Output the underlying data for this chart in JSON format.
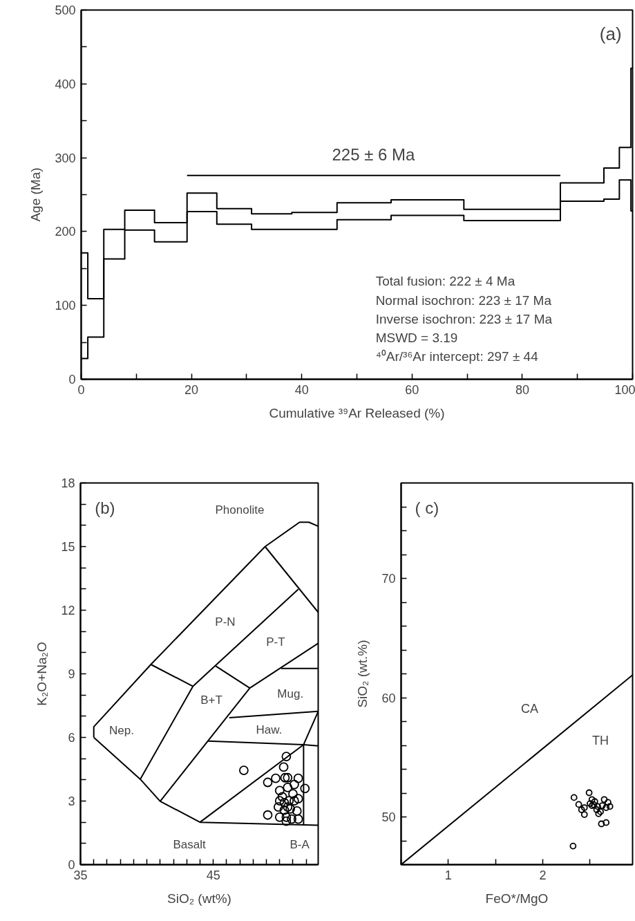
{
  "chart_data": [
    {
      "type": "step",
      "title": "(a)",
      "xlabel": "Cumulative ³⁹Ar Released (%)",
      "ylabel": "Age (Ma)",
      "xlim": [
        0,
        100
      ],
      "ylim": [
        0,
        500
      ],
      "xticks": [
        0,
        {
          "value": 10,
          "label": null
        },
        20,
        {
          "value": 30,
          "label": null
        },
        40,
        {
          "value": 50,
          "label": null
        },
        60,
        {
          "value": 70,
          "label": null
        },
        80,
        {
          "value": 90,
          "label": null
        },
        100
      ],
      "yticks": [
        0,
        {
          "value": 50,
          "label": null
        },
        100,
        {
          "value": 150,
          "label": null
        },
        200,
        {
          "value": 250,
          "label": null
        },
        300,
        {
          "value": 350,
          "label": null
        },
        400,
        {
          "value": 450,
          "label": null
        },
        500
      ],
      "x": [
        0,
        1.2,
        4.1,
        7.9,
        13.3,
        19.2,
        24.6,
        30.9,
        38.2,
        46.4,
        56.2,
        69.4,
        86.9,
        94.8,
        97.6,
        99.7
      ],
      "series": [
        {
          "color": "#000000",
          "values": [
            171,
            109,
            203,
            229,
            212,
            252,
            231,
            224,
            226,
            239,
            243,
            230,
            266,
            286,
            314,
            421
          ]
        },
        {
          "color": "#000000",
          "values": [
            28,
            57,
            163,
            202,
            186,
            227,
            210,
            203,
            203,
            216,
            222,
            215,
            241,
            244,
            270,
            228
          ]
        },
        {
          "type": "line",
          "color": "#000000",
          "x": [
            19.2,
            86.9
          ],
          "values": [
            276,
            276
          ]
        }
      ],
      "annotations": [
        "225 ± 6 Ma",
        "Total fusion: 222 ± 4  Ma",
        "Normal isochron: 223 ± 17 Ma",
        "Inverse isochron: 223 ± 17 Ma",
        "MSWD = 3.19",
        "⁴⁰Ar/³⁶Ar intercept: 297 ± 44"
      ]
    },
    {
      "type": "scatter",
      "title": "(b)",
      "xlabel": "SiO₂ (wt%)",
      "ylabel": "K₂O+Na₂O",
      "xlim": [
        35,
        52.9
      ],
      "ylim": [
        0,
        18
      ],
      "xticks": [
        35,
        {
          "value": 36,
          "label": null
        },
        {
          "value": 37,
          "label": null
        },
        {
          "value": 38,
          "label": null
        },
        {
          "value": 39,
          "label": null
        },
        {
          "value": 40,
          "label": null
        },
        {
          "value": 41,
          "label": null
        },
        {
          "value": 42,
          "label": null
        },
        {
          "value": 43,
          "label": null
        },
        {
          "value": 44,
          "label": null
        },
        45,
        {
          "value": 46,
          "label": null
        },
        {
          "value": 47,
          "label": null
        },
        {
          "value": 48,
          "label": null
        },
        {
          "value": 49,
          "label": null
        },
        {
          "value": 50,
          "label": null
        },
        {
          "value": 51,
          "label": null
        },
        {
          "value": 52,
          "label": null
        }
      ],
      "yticks": [
        0,
        {
          "value": 1,
          "label": null
        },
        {
          "value": 2,
          "label": null
        },
        3,
        {
          "value": 4,
          "label": null
        },
        {
          "value": 5,
          "label": null
        },
        6,
        {
          "value": 7,
          "label": null
        },
        {
          "value": 8,
          "label": null
        },
        9,
        {
          "value": 10,
          "label": null
        },
        {
          "value": 11,
          "label": null
        },
        12,
        {
          "value": 13,
          "label": null
        },
        {
          "value": 14,
          "label": null
        },
        15,
        {
          "value": 16,
          "label": null
        },
        {
          "value": 17,
          "label": null
        },
        18
      ],
      "series": [
        {
          "type": "line",
          "color": "#000000",
          "x": [
            36.0,
            36.0,
            40.3,
            48.9,
            51.5,
            52.2,
            52.9
          ],
          "values": [
            6.0,
            6.5,
            9.44,
            15.0,
            16.15,
            16.15,
            15.96
          ]
        },
        {
          "type": "line",
          "color": "#000000",
          "x": [
            36.0,
            39.5,
            41.0,
            44.0,
            52.9
          ],
          "values": [
            6.0,
            4.03,
            2.99,
            2.0,
            1.86
          ]
        },
        {
          "type": "line",
          "color": "#000000",
          "x": [
            40.3,
            43.47
          ],
          "values": [
            9.44,
            8.41
          ]
        },
        {
          "type": "line",
          "color": "#000000",
          "x": [
            39.5,
            43.47,
            45.15,
            51.4
          ],
          "values": [
            4.03,
            8.41,
            9.38,
            12.99
          ]
        },
        {
          "type": "line",
          "color": "#000000",
          "x": [
            48.9,
            52.9
          ],
          "values": [
            15.0,
            11.9
          ]
        },
        {
          "type": "line",
          "color": "#000000",
          "x": [
            45.15,
            47.75
          ],
          "values": [
            9.38,
            8.33
          ]
        },
        {
          "type": "line",
          "color": "#000000",
          "x": [
            41.0,
            47.75,
            52.9
          ],
          "values": [
            2.99,
            8.33,
            10.44
          ]
        },
        {
          "type": "line",
          "color": "#000000",
          "x": [
            50.1,
            52.9
          ],
          "values": [
            9.25,
            9.25
          ]
        },
        {
          "type": "line",
          "color": "#000000",
          "x": [
            46.2,
            52.9
          ],
          "values": [
            6.93,
            7.23
          ]
        },
        {
          "type": "line",
          "color": "#000000",
          "x": [
            44.6,
            51.8,
            52.9
          ],
          "values": [
            5.83,
            5.66,
            5.6
          ]
        },
        {
          "type": "line",
          "color": "#000000",
          "x": [
            52.9,
            51.8,
            51.8
          ],
          "values": [
            7.23,
            5.66,
            1.86
          ]
        },
        {
          "type": "line",
          "color": "#000000",
          "x": [
            44.0,
            51.8
          ],
          "values": [
            2.0,
            5.66
          ]
        },
        {
          "type": "scatter",
          "marker": "circle",
          "color": "#000000",
          "x": [
            47.3,
            50.5,
            50.3,
            49.1,
            49.7,
            50.4,
            50.6,
            51.4,
            51.1,
            51.9,
            50.0,
            50.6,
            51.0,
            51.4,
            50.0,
            50.35,
            50.7,
            51.1,
            49.9,
            50.35,
            50.8,
            51.3,
            49.1,
            50.0,
            50.5,
            50.9,
            51.4,
            50.5,
            50.2,
            50.6
          ],
          "values": [
            4.45,
            5.1,
            4.6,
            3.88,
            4.07,
            4.1,
            4.1,
            4.07,
            3.78,
            3.59,
            3.49,
            3.64,
            3.34,
            3.11,
            3.01,
            2.92,
            3.01,
            3.01,
            2.72,
            2.57,
            2.63,
            2.53,
            2.34,
            2.24,
            2.24,
            2.15,
            2.15,
            2.05,
            3.2,
            2.72
          ]
        }
      ],
      "annotations": [
        "Phonolite",
        "P-N",
        "P-T",
        "Mug.",
        "B+T",
        "Haw.",
        "Nep.",
        "Basalt",
        "B-A"
      ]
    },
    {
      "type": "scatter",
      "title": "( c)",
      "xlabel": "FeO*/MgO",
      "ylabel": "SiO₂ (wt.%)",
      "xlim": [
        0.5,
        2.95
      ],
      "ylim": [
        46,
        78
      ],
      "xticks": [
        {
          "value": 0.5,
          "label": null
        },
        1,
        {
          "value": 1.5,
          "label": null
        },
        2,
        {
          "value": 2.5,
          "label": null
        }
      ],
      "yticks": [
        {
          "value": 48,
          "label": null
        },
        50,
        {
          "value": 52,
          "label": null
        },
        {
          "value": 54,
          "label": null
        },
        {
          "value": 56,
          "label": null
        },
        {
          "value": 58,
          "label": null
        },
        60,
        {
          "value": 62,
          "label": null
        },
        {
          "value": 64,
          "label": null
        },
        {
          "value": 66,
          "label": null
        },
        {
          "value": 68,
          "label": null
        },
        70,
        {
          "value": 72,
          "label": null
        },
        {
          "value": 74,
          "label": null
        },
        {
          "value": 76,
          "label": null
        }
      ],
      "series": [
        {
          "type": "line",
          "color": "#000000",
          "x": [
            0.5,
            2.95
          ],
          "values": [
            46.0,
            61.9
          ]
        },
        {
          "type": "scatter",
          "marker": "circle",
          "color": "#000000",
          "x": [
            2.32,
            2.33,
            2.38,
            2.44,
            2.41,
            2.44,
            2.49,
            2.52,
            2.54,
            2.58,
            2.57,
            2.61,
            2.63,
            2.59,
            2.67,
            2.65,
            2.69,
            2.71,
            2.62,
            2.67,
            2.52,
            2.55,
            2.5
          ],
          "values": [
            47.56,
            51.63,
            51.05,
            50.78,
            50.61,
            50.2,
            52.03,
            51.46,
            51.02,
            50.88,
            50.61,
            50.44,
            50.95,
            50.27,
            50.78,
            51.46,
            51.22,
            50.88,
            49.42,
            49.53,
            50.95,
            51.29,
            51.12
          ]
        }
      ],
      "annotations": [
        "CA",
        "TH"
      ]
    }
  ]
}
